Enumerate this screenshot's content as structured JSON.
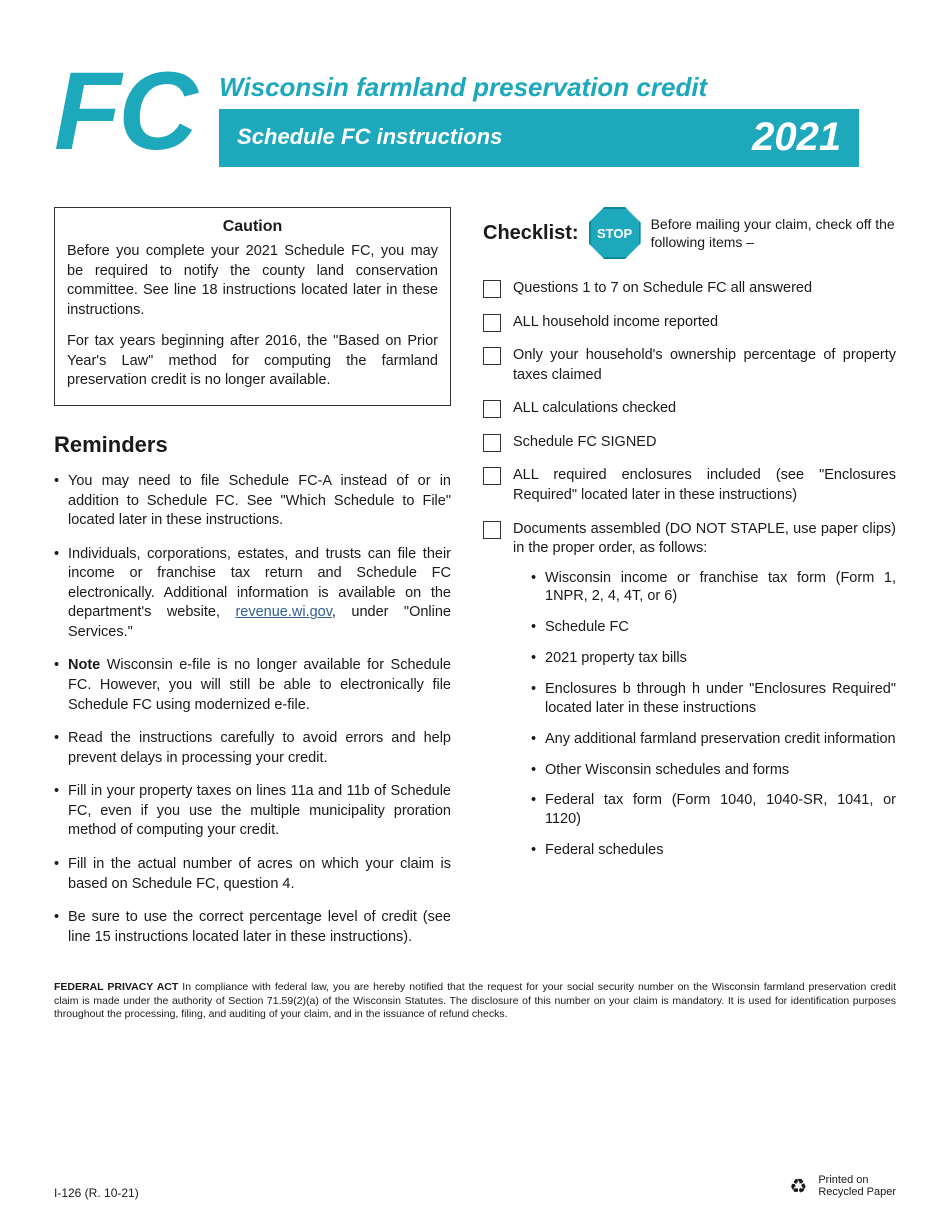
{
  "header": {
    "logo_text": "FC",
    "title": "Wisconsin farmland preservation credit",
    "subtitle": "Schedule FC instructions",
    "year": "2021",
    "accent_color": "#1da8bc"
  },
  "caution": {
    "title": "Caution",
    "p1": "Before you complete your 2021 Schedule FC, you may be required to notify the county land conservation committee. See line 18 instructions located later in these instructions.",
    "p2": "For tax years beginning after 2016, the \"Based on Prior Year's Law\" method for computing the farmland preservation credit is no longer available."
  },
  "reminders": {
    "title": "Reminders",
    "items": [
      {
        "text": "You may need to file Schedule FC-A instead of or in addition to Schedule FC. See \"Which Schedule to File\" located later in these instructions."
      },
      {
        "text_pre": "Individuals, corporations, estates, and trusts can file their income or franchise tax return and Schedule FC electronically. Additional information is available on the department's website, ",
        "link_text": "revenue.wi.gov",
        "text_post": ", under \"Online Services.\""
      },
      {
        "bold_lead": "Note",
        "text": "  Wisconsin e-file is no longer available for Schedule FC. However, you will still be able to electronically file Schedule FC using modernized e-file."
      },
      {
        "text": "Read the instructions carefully to avoid errors and help prevent delays in processing your credit."
      },
      {
        "text": "Fill in your property taxes on lines 11a and 11b of Schedule FC, even if you use the multiple municipality proration method of computing your credit."
      },
      {
        "text": "Fill in the actual number of acres on which your claim is based on Schedule FC, question 4."
      },
      {
        "text": "Be sure to use the correct percentage level of credit (see line 15 instructions located later in these instructions)."
      }
    ]
  },
  "checklist": {
    "label": "Checklist:",
    "stop_label": "STOP",
    "note": "Before mailing your claim, check off the following items –",
    "items": [
      {
        "text": "Questions 1 to 7 on Schedule FC all answered"
      },
      {
        "text": "ALL household income reported"
      },
      {
        "text": "Only your household's ownership percentage of property taxes claimed"
      },
      {
        "text": "ALL calculations checked"
      },
      {
        "text": "Schedule FC  SIGNED"
      },
      {
        "text": "ALL required enclosures included (see \"Enclosures Required\" located later in these instructions)"
      },
      {
        "text": "Documents assembled (DO NOT STAPLE, use paper clips) in the proper order, as follows:",
        "sub": [
          "Wisconsin income or franchise tax form (Form 1, 1NPR, 2, 4, 4T, or 6)",
          "Schedule FC",
          "2021 property tax bills",
          "Enclosures b through h under \"Enclosures Required\" located later in these instructions",
          "Any additional farmland preservation credit information",
          "Other Wisconsin schedules and forms",
          "Federal tax form (Form 1040, 1040-SR, 1041, or 1120)",
          "Federal schedules"
        ]
      }
    ]
  },
  "privacy": {
    "label": "FEDERAL PRIVACY ACT",
    "text": "  In compliance with federal law, you are hereby notified that the request for your social security number on the Wisconsin farmland preservation credit claim is made under the authority of Section 71.59(2)(a) of the Wisconsin Statutes.  The disclosure of this number on your claim is mandatory.  It is used for identification purposes throughout the processing, filing, and auditing of your claim, and in the issuance of refund checks."
  },
  "footer": {
    "form_number": "I-126 (R. 10-21)",
    "recycle_line1": "Printed on",
    "recycle_line2": "Recycled Paper"
  }
}
